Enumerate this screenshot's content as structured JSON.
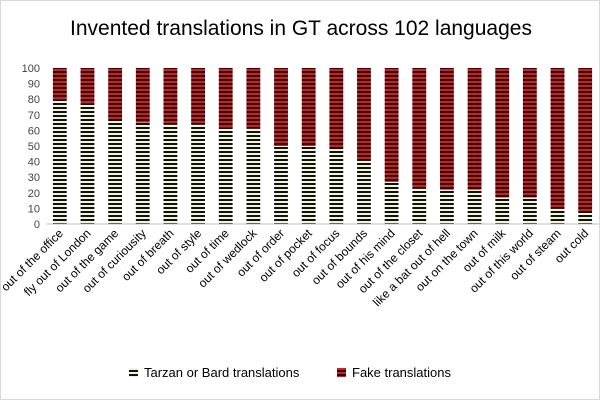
{
  "chart_data": {
    "type": "bar",
    "stacked": true,
    "title": "Invented translations in GT across 102 languages",
    "xlabel": "",
    "ylabel": "",
    "ylim": [
      0,
      100
    ],
    "yticks": [
      0,
      10,
      20,
      30,
      40,
      50,
      60,
      70,
      80,
      90,
      100
    ],
    "grid": false,
    "legend_position": "bottom",
    "categories": [
      "out of the office",
      "fly out of London",
      "out of the game",
      "out of curiousity",
      "out of breath",
      "out of style",
      "out of time",
      "out of wedlock",
      "out of order",
      "out of pocket",
      "out of focus",
      "out of bounds",
      "out of his mind",
      "out of the closet",
      "like a bat out of hell",
      "out on the town",
      "out of milk",
      "out of this world",
      "out of steam",
      "out cold"
    ],
    "series": [
      {
        "name": "Tarzan or Bard translations",
        "color": "#111111",
        "pattern_color": "#f0f4dc",
        "values": [
          80,
          77,
          66,
          65,
          64,
          64,
          62,
          61,
          50,
          50,
          48,
          41,
          27,
          23,
          22,
          22,
          17,
          17,
          10,
          8
        ]
      },
      {
        "name": "Fake translations",
        "color": "#111111",
        "pattern_color": "#e8141b",
        "values": [
          20,
          23,
          34,
          35,
          36,
          36,
          38,
          39,
          50,
          50,
          52,
          59,
          73,
          77,
          78,
          78,
          83,
          83,
          90,
          92
        ]
      }
    ]
  }
}
